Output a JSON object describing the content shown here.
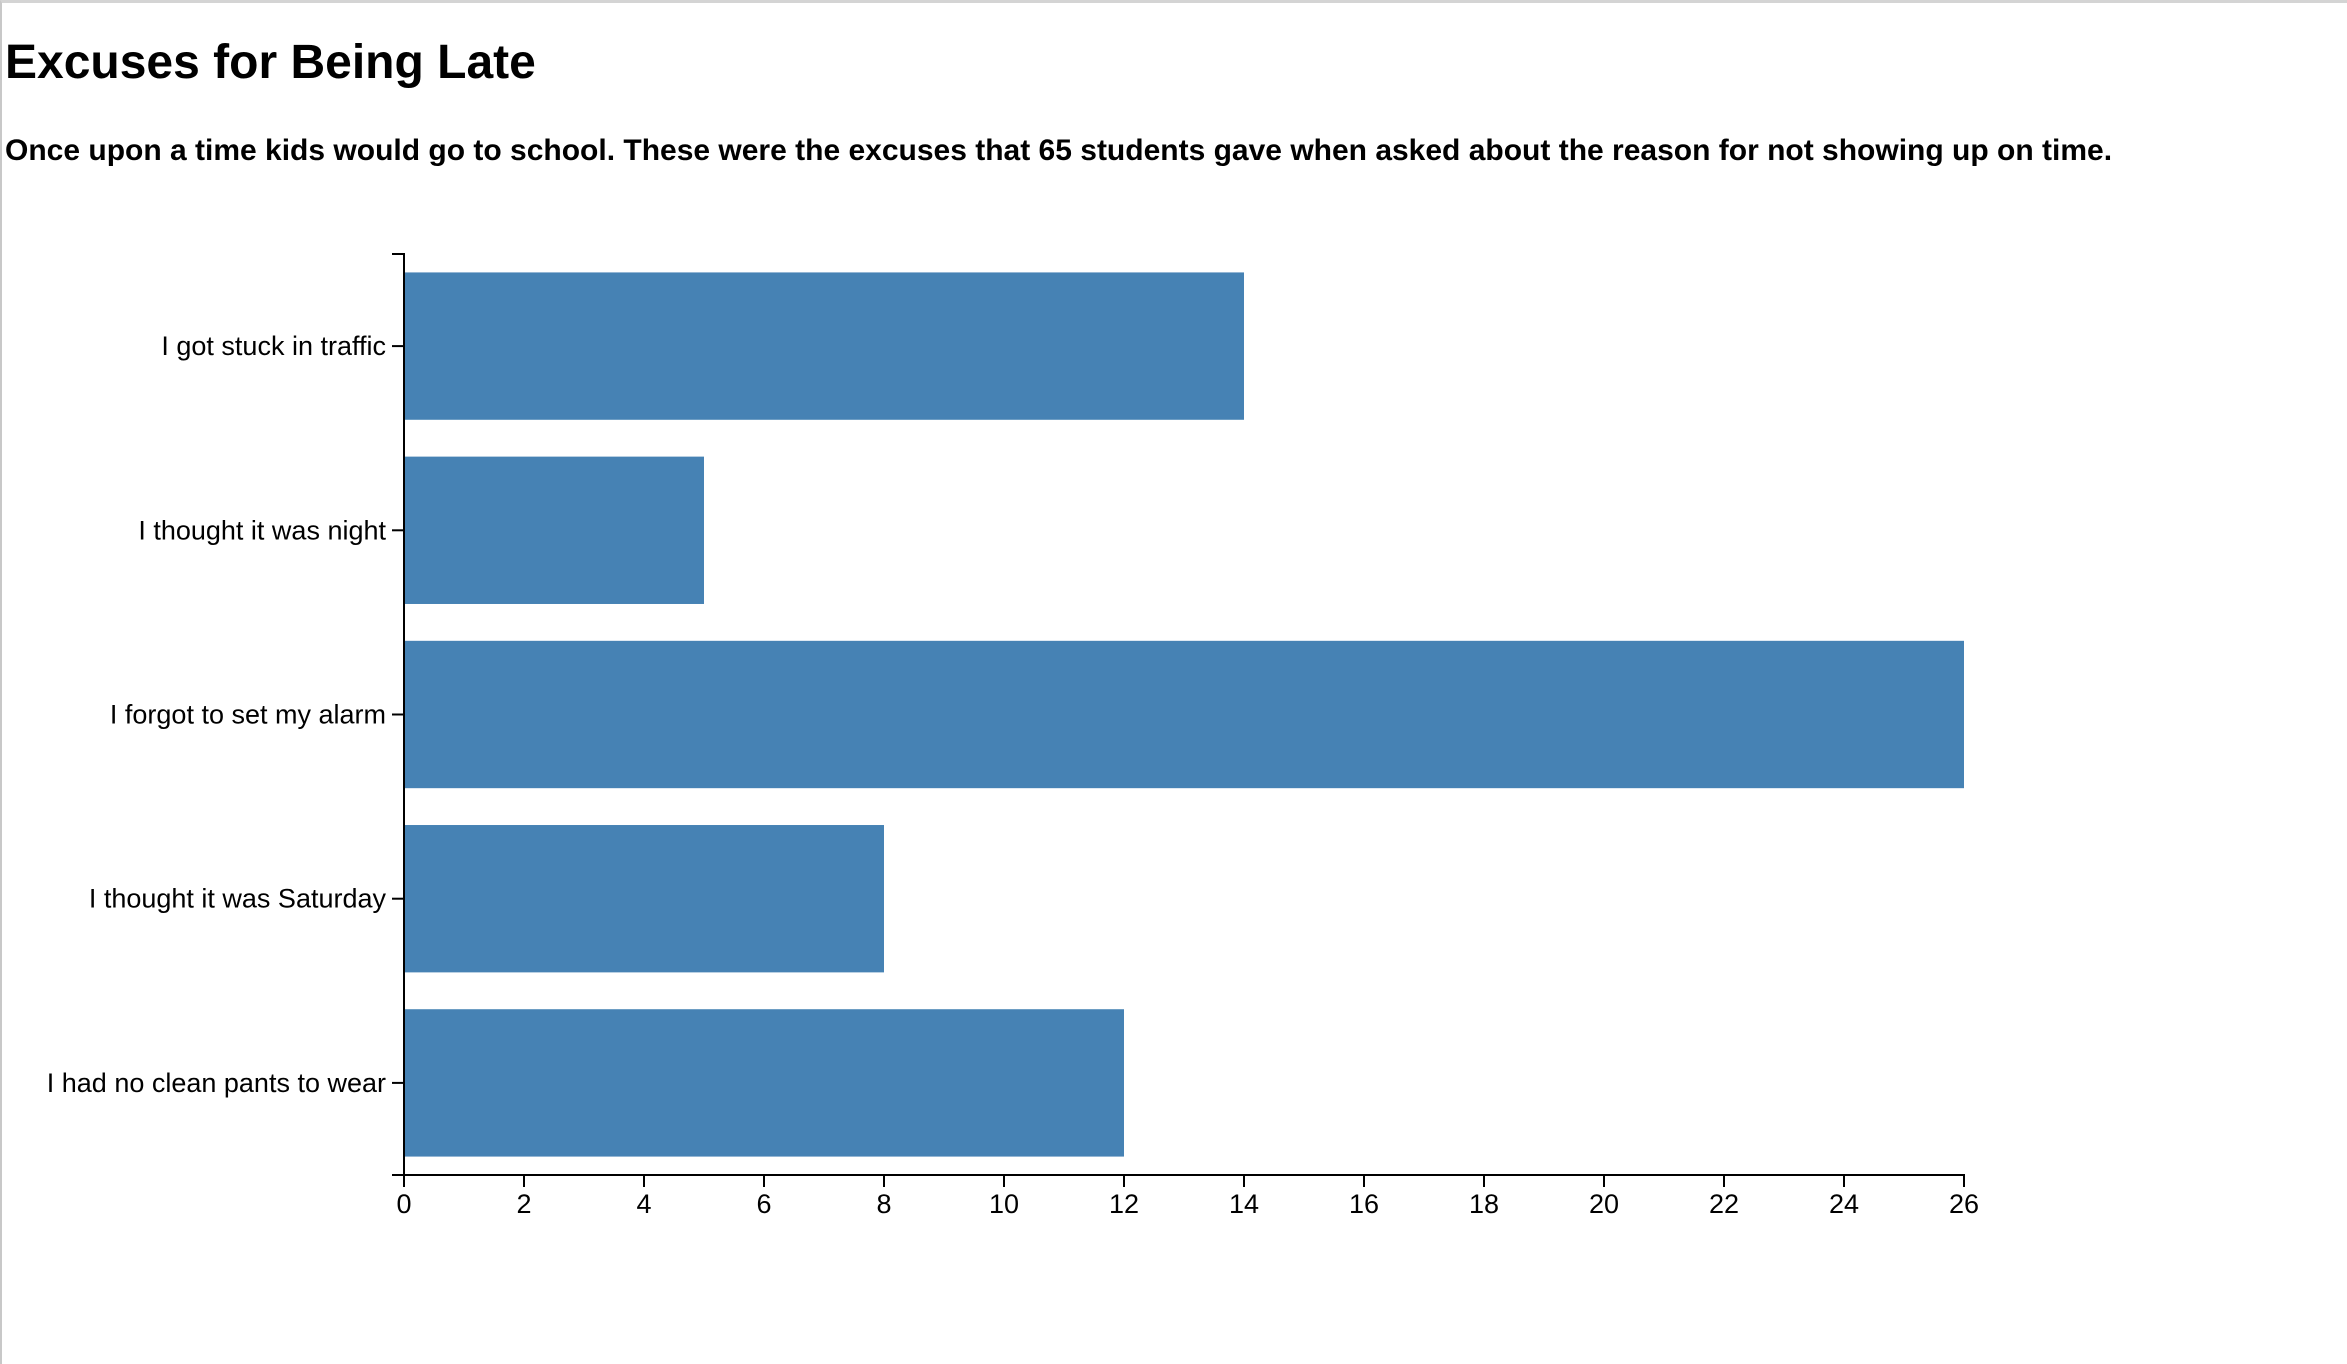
{
  "chart_data": {
    "type": "bar",
    "orientation": "horizontal",
    "title": "Excuses for Being Late",
    "subtitle": "Once upon a time kids would go to school. These were the excuses that 65 students gave when asked about the reason for not showing up on time.",
    "xlabel": "",
    "ylabel": "",
    "categories": [
      "I got stuck in traffic",
      "I thought it was night",
      "I forgot to set my alarm",
      "I thought it was Saturday",
      "I had no clean pants to wear"
    ],
    "values": [
      14,
      5,
      26,
      8,
      12
    ],
    "xlim": [
      0,
      26
    ],
    "xticks": [
      "0",
      "2",
      "4",
      "6",
      "8",
      "10",
      "12",
      "14",
      "16",
      "18",
      "20",
      "22",
      "24",
      "26"
    ],
    "grid": false,
    "legend": "none",
    "bar_color": "#4682b4"
  }
}
